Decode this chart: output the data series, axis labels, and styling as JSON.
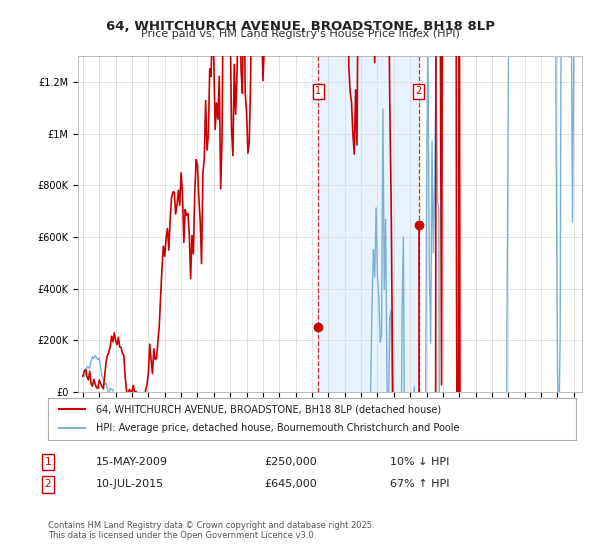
{
  "title": "64, WHITCHURCH AVENUE, BROADSTONE, BH18 8LP",
  "subtitle": "Price paid vs. HM Land Registry's House Price Index (HPI)",
  "hpi_color": "#7ab0d4",
  "price_color": "#cc0000",
  "transaction1_x": 2009.37,
  "transaction1_price": 250000,
  "transaction1_date": "15-MAY-2009",
  "transaction1_pct": "10% ↓ HPI",
  "transaction2_x": 2015.53,
  "transaction2_price": 645000,
  "transaction2_date": "10-JUL-2015",
  "transaction2_pct": "67% ↑ HPI",
  "legend_line1": "64, WHITCHURCH AVENUE, BROADSTONE, BH18 8LP (detached house)",
  "legend_line2": "HPI: Average price, detached house, Bournemouth Christchurch and Poole",
  "footnote": "Contains HM Land Registry data © Crown copyright and database right 2025.\nThis data is licensed under the Open Government Licence v3.0.",
  "yticks": [
    0,
    200000,
    400000,
    600000,
    800000,
    1000000,
    1200000
  ],
  "ytick_labels": [
    "£0",
    "£200K",
    "£400K",
    "£600K",
    "£800K",
    "£1M",
    "£1.2M"
  ],
  "background_color": "#ffffff",
  "grid_color": "#dddddd",
  "shaded_color": "#ddeeff"
}
